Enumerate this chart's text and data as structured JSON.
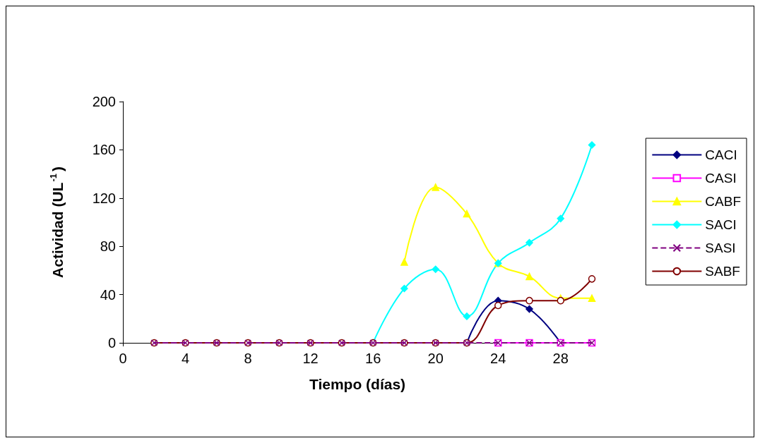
{
  "chart_data": {
    "type": "line",
    "xlabel": "Tiempo (días)",
    "ylabel": "Actividad (UL$^{-1}$)",
    "x": [
      2,
      4,
      6,
      8,
      10,
      12,
      14,
      16,
      18,
      20,
      22,
      24,
      26,
      28,
      30
    ],
    "xlim": [
      0,
      30
    ],
    "xticks": [
      0,
      4,
      8,
      12,
      16,
      20,
      24,
      28
    ],
    "ylim": [
      0,
      200
    ],
    "yticks": [
      0,
      40,
      80,
      120,
      160,
      200
    ],
    "grid": false,
    "legend": "right",
    "series": [
      {
        "name": "CACI",
        "color": "#000080",
        "marker": "diamond",
        "values": [
          null,
          null,
          null,
          null,
          null,
          null,
          null,
          null,
          null,
          null,
          0,
          35,
          28,
          0,
          null
        ]
      },
      {
        "name": "CASI",
        "color": "#ff00ff",
        "marker": "square",
        "values": [
          null,
          null,
          null,
          null,
          null,
          null,
          null,
          null,
          null,
          null,
          null,
          0,
          0,
          0,
          0
        ]
      },
      {
        "name": "CABF",
        "color": "#ffff00",
        "marker": "triangle",
        "values": [
          null,
          null,
          null,
          null,
          null,
          null,
          null,
          null,
          67,
          129,
          107,
          66,
          55,
          37,
          37
        ]
      },
      {
        "name": "SACI",
        "color": "#00ffff",
        "marker": "diamond",
        "values": [
          null,
          null,
          null,
          null,
          null,
          null,
          null,
          0,
          45,
          61,
          22,
          66,
          83,
          103,
          164
        ]
      },
      {
        "name": "SASI",
        "color": "#800080",
        "marker": "cross",
        "line_style": "dashed",
        "values": [
          0,
          0,
          0,
          0,
          0,
          0,
          0,
          0,
          0,
          0,
          0,
          0,
          0,
          0,
          0
        ]
      },
      {
        "name": "SABF",
        "color": "#800000",
        "marker": "circle",
        "values": [
          0,
          0,
          0,
          0,
          0,
          0,
          0,
          0,
          0,
          0,
          0,
          31,
          35,
          35,
          53
        ]
      }
    ]
  }
}
